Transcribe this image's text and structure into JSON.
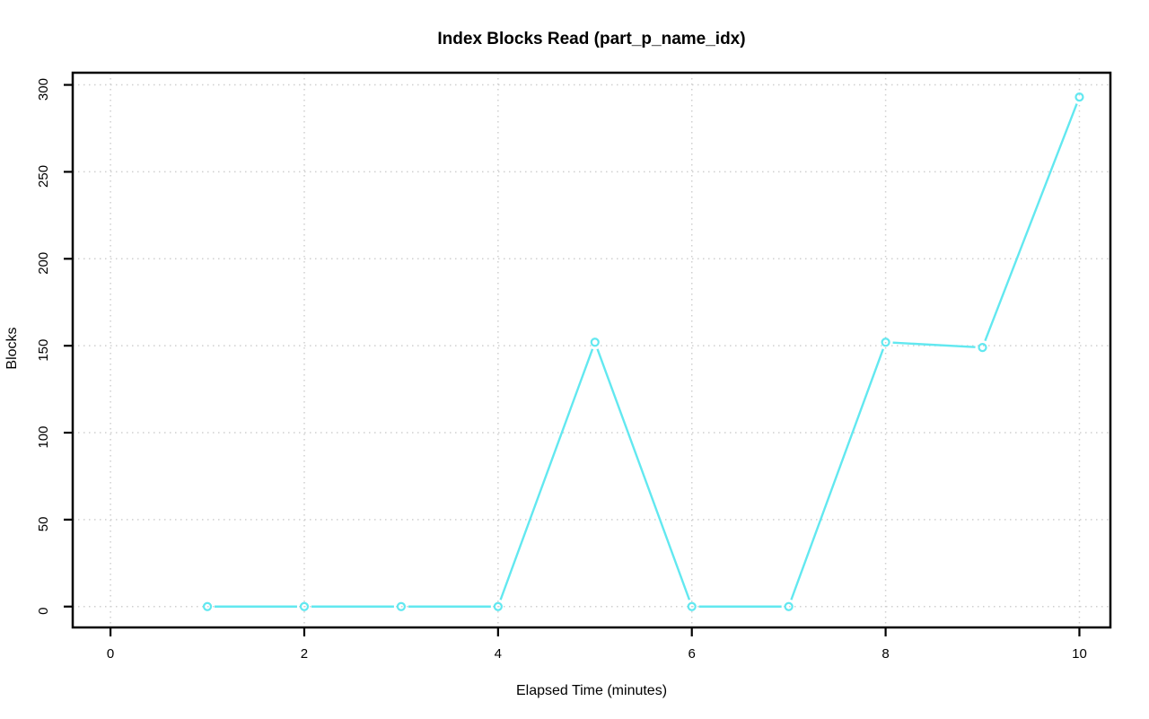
{
  "window": {
    "background": "#ffffff"
  },
  "chart_data": {
    "type": "line",
    "title": "Index Blocks Read (part_p_name_idx)",
    "xlabel": "Elapsed Time (minutes)",
    "ylabel": "Blocks",
    "x": [
      1,
      2,
      3,
      4,
      5,
      6,
      7,
      8,
      9,
      10
    ],
    "series": [
      {
        "name": "part_p_name_idx",
        "values": [
          0,
          0,
          0,
          0,
          152,
          0,
          0,
          152,
          149,
          293
        ]
      }
    ],
    "xticks": [
      0,
      2,
      4,
      6,
      8,
      10
    ],
    "yticks": [
      0,
      50,
      100,
      150,
      200,
      250,
      300
    ],
    "xlim": [
      -0.39,
      10.32
    ],
    "ylim": [
      -12,
      307
    ],
    "grid": true,
    "grid_style": "dotted",
    "legend_position": "none",
    "marker": "open-circle",
    "line_type": "b",
    "colors": {
      "series": "#62E8F0",
      "grid": "#cfcfcf",
      "axis": "#000000",
      "text": "#000000",
      "background": "#ffffff"
    }
  }
}
